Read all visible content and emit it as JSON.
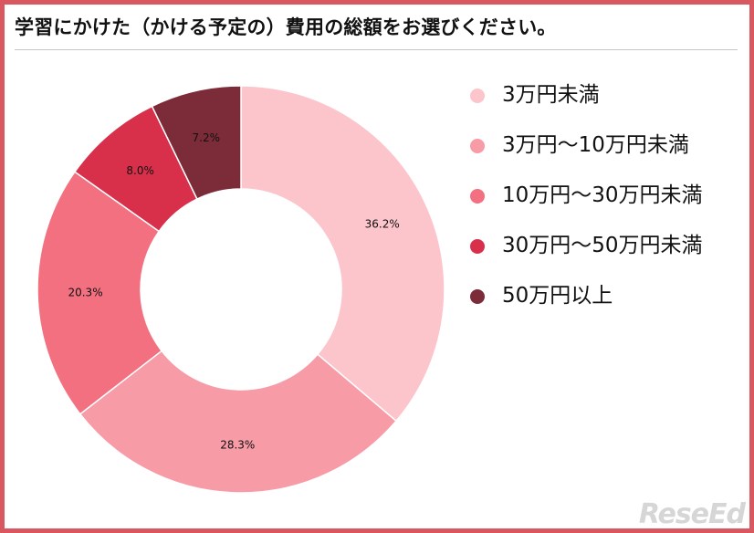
{
  "title": "学習にかけた（かける予定の）費用の総額をお選びください。",
  "watermark": "ReseEd",
  "chart_data": {
    "type": "pie",
    "style": "donut",
    "categories": [
      "3万円未満",
      "3万円～10万円未満",
      "10万円～30万円未満",
      "30万円～50万円未満",
      "50万円以上"
    ],
    "values": [
      36.2,
      28.3,
      20.3,
      8.0,
      7.2
    ],
    "value_labels": [
      "36.2%",
      "28.3%",
      "20.3%",
      "8.0%",
      "7.2%"
    ],
    "colors": [
      "#fcc5cc",
      "#f79ba6",
      "#f2707f",
      "#d8304b",
      "#7c2b38"
    ],
    "legend_position": "right",
    "start_angle": "12 o'clock",
    "direction": "clockwise"
  }
}
